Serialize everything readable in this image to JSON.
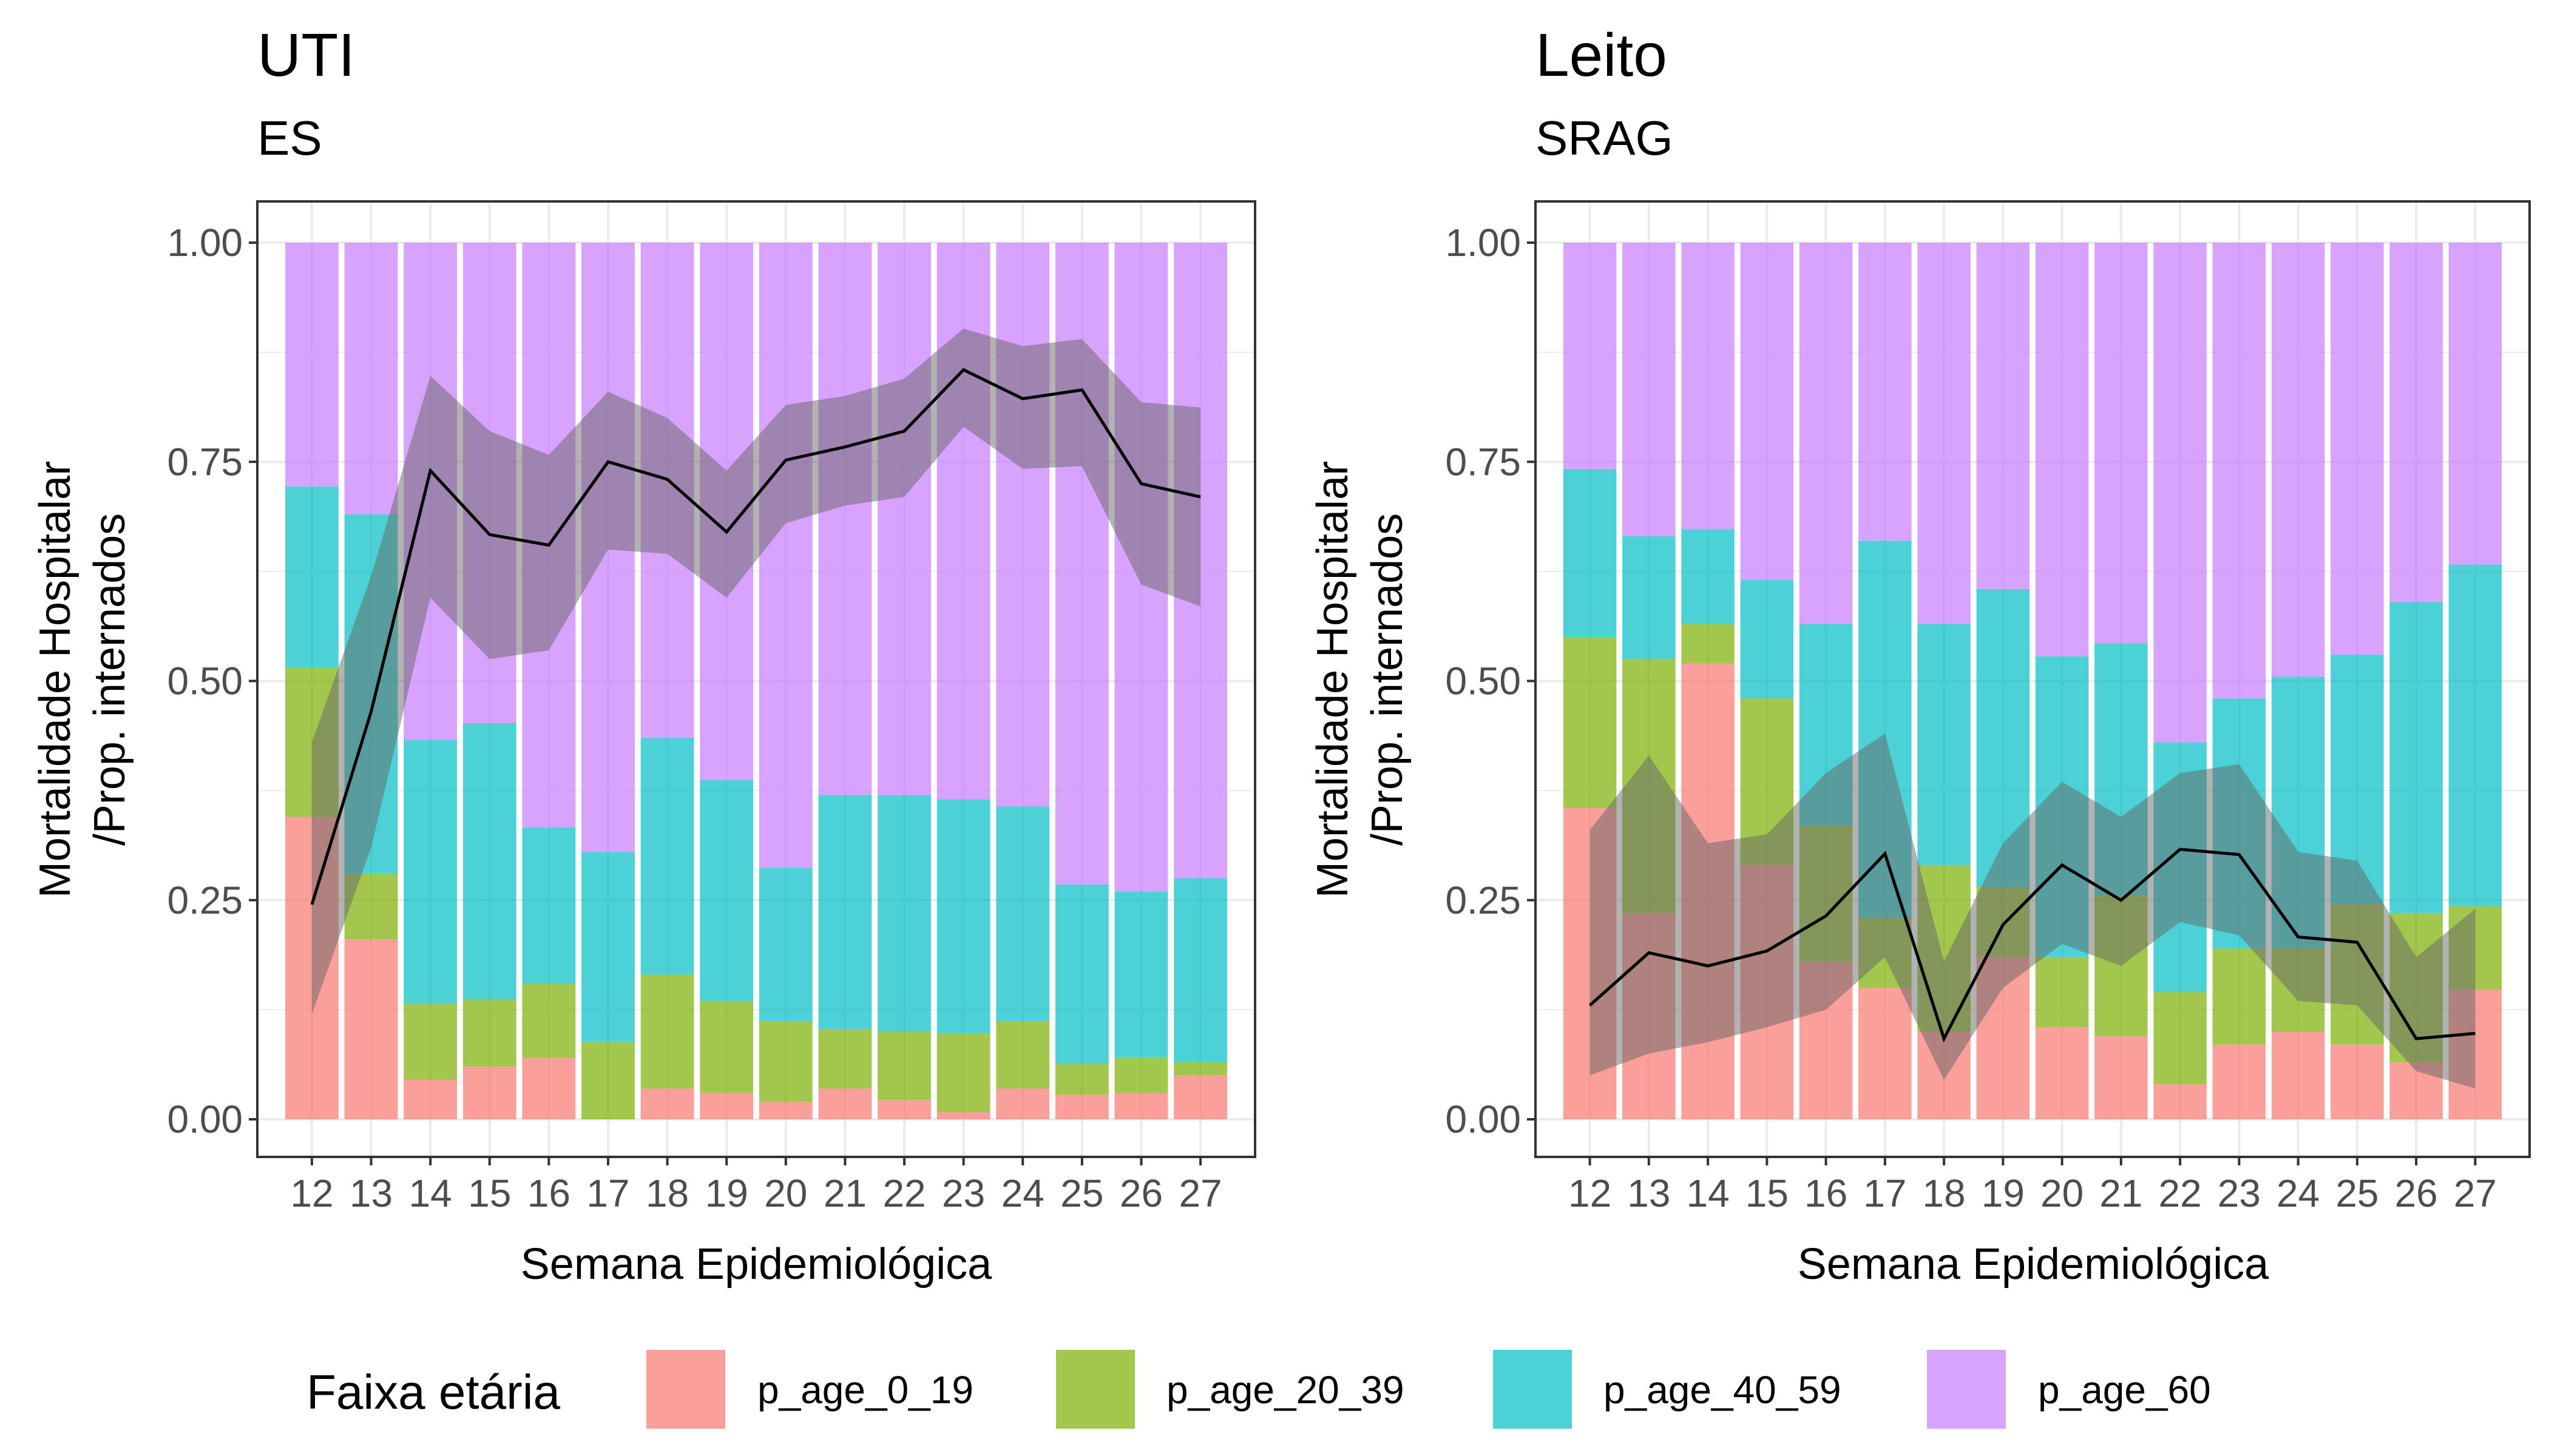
{
  "chart_data": [
    {
      "type": "bar",
      "title": "UTI",
      "subtitle": "ES",
      "xlabel": "Semana Epidemiológica",
      "ylabel": [
        "Mortalidade Hospitalar",
        "/Prop. internados"
      ],
      "ylim": [
        0,
        1
      ],
      "yticks": [
        "0.00",
        "0.25",
        "0.50",
        "0.75",
        "1.00"
      ],
      "grid": true,
      "stacked": true,
      "categories": [
        "12",
        "13",
        "14",
        "15",
        "16",
        "17",
        "18",
        "19",
        "20",
        "21",
        "22",
        "23",
        "24",
        "25",
        "26",
        "27"
      ],
      "series": [
        {
          "name": "p_age_0_19",
          "values": [
            0.345,
            0.205,
            0.045,
            0.06,
            0.07,
            0.0,
            0.035,
            0.03,
            0.02,
            0.035,
            0.022,
            0.008,
            0.035,
            0.028,
            0.03,
            0.05
          ]
        },
        {
          "name": "p_age_20_39",
          "values": [
            0.17,
            0.075,
            0.087,
            0.077,
            0.085,
            0.088,
            0.13,
            0.105,
            0.092,
            0.068,
            0.078,
            0.09,
            0.077,
            0.035,
            0.04,
            0.015
          ]
        },
        {
          "name": "p_age_40_59",
          "values": [
            0.207,
            0.41,
            0.301,
            0.315,
            0.178,
            0.217,
            0.27,
            0.252,
            0.175,
            0.267,
            0.27,
            0.267,
            0.245,
            0.205,
            0.19,
            0.21
          ]
        },
        {
          "name": "p_age_60",
          "values": [
            0.278,
            0.31,
            0.567,
            0.548,
            0.667,
            0.695,
            0.565,
            0.613,
            0.713,
            0.63,
            0.63,
            0.635,
            0.643,
            0.732,
            0.74,
            0.725
          ]
        }
      ],
      "line": {
        "values": [
          0.245,
          0.465,
          0.74,
          0.667,
          0.655,
          0.75,
          0.73,
          0.67,
          0.752,
          0.767,
          0.785,
          0.855,
          0.822,
          0.832,
          0.725,
          0.71
        ],
        "lower": [
          0.12,
          0.31,
          0.595,
          0.525,
          0.535,
          0.65,
          0.645,
          0.595,
          0.68,
          0.7,
          0.71,
          0.79,
          0.742,
          0.745,
          0.61,
          0.585
        ],
        "upper": [
          0.43,
          0.62,
          0.848,
          0.785,
          0.758,
          0.83,
          0.8,
          0.74,
          0.815,
          0.825,
          0.845,
          0.902,
          0.882,
          0.89,
          0.818,
          0.812
        ]
      }
    },
    {
      "type": "bar",
      "title": "Leito",
      "subtitle": "SRAG",
      "xlabel": "Semana Epidemiológica",
      "ylabel": [
        "Mortalidade Hospitalar",
        "/Prop. internados"
      ],
      "ylim": [
        0,
        1
      ],
      "yticks": [
        "0.00",
        "0.25",
        "0.50",
        "0.75",
        "1.00"
      ],
      "grid": true,
      "stacked": true,
      "categories": [
        "12",
        "13",
        "14",
        "15",
        "16",
        "17",
        "18",
        "19",
        "20",
        "21",
        "22",
        "23",
        "24",
        "25",
        "26",
        "27"
      ],
      "series": [
        {
          "name": "p_age_0_19",
          "values": [
            0.355,
            0.235,
            0.52,
            0.29,
            0.18,
            0.15,
            0.1,
            0.185,
            0.105,
            0.095,
            0.04,
            0.085,
            0.1,
            0.085,
            0.065,
            0.148
          ]
        },
        {
          "name": "p_age_20_39",
          "values": [
            0.195,
            0.29,
            0.045,
            0.19,
            0.155,
            0.08,
            0.19,
            0.08,
            0.08,
            0.16,
            0.105,
            0.11,
            0.095,
            0.16,
            0.17,
            0.095
          ]
        },
        {
          "name": "p_age_40_59",
          "values": [
            0.192,
            0.14,
            0.108,
            0.135,
            0.23,
            0.43,
            0.275,
            0.34,
            0.343,
            0.288,
            0.285,
            0.285,
            0.31,
            0.285,
            0.355,
            0.39
          ]
        },
        {
          "name": "p_age_60",
          "values": [
            0.258,
            0.335,
            0.327,
            0.385,
            0.435,
            0.34,
            0.435,
            0.395,
            0.472,
            0.457,
            0.57,
            0.52,
            0.495,
            0.47,
            0.41,
            0.367
          ]
        }
      ],
      "line": {
        "values": [
          0.13,
          0.19,
          0.175,
          0.192,
          0.232,
          0.303,
          0.092,
          0.222,
          0.29,
          0.25,
          0.308,
          0.302,
          0.208,
          0.202,
          0.092,
          0.098
        ],
        "lower": [
          0.05,
          0.075,
          0.088,
          0.105,
          0.125,
          0.185,
          0.045,
          0.15,
          0.2,
          0.175,
          0.225,
          0.21,
          0.135,
          0.13,
          0.055,
          0.035
        ],
        "upper": [
          0.33,
          0.415,
          0.315,
          0.325,
          0.395,
          0.44,
          0.18,
          0.315,
          0.385,
          0.345,
          0.395,
          0.405,
          0.305,
          0.295,
          0.185,
          0.24
        ]
      }
    }
  ],
  "legend": {
    "title": "Faixa etária",
    "items": [
      {
        "label": "p_age_0_19",
        "color": "#F8766D"
      },
      {
        "label": "p_age_20_39",
        "color": "#7CAE00"
      },
      {
        "label": "p_age_40_59",
        "color": "#00BFC4"
      },
      {
        "label": "p_age_60",
        "color": "#C77CFF"
      }
    ]
  },
  "colors": {
    "line": "#000000",
    "ribbon": "#666666"
  }
}
